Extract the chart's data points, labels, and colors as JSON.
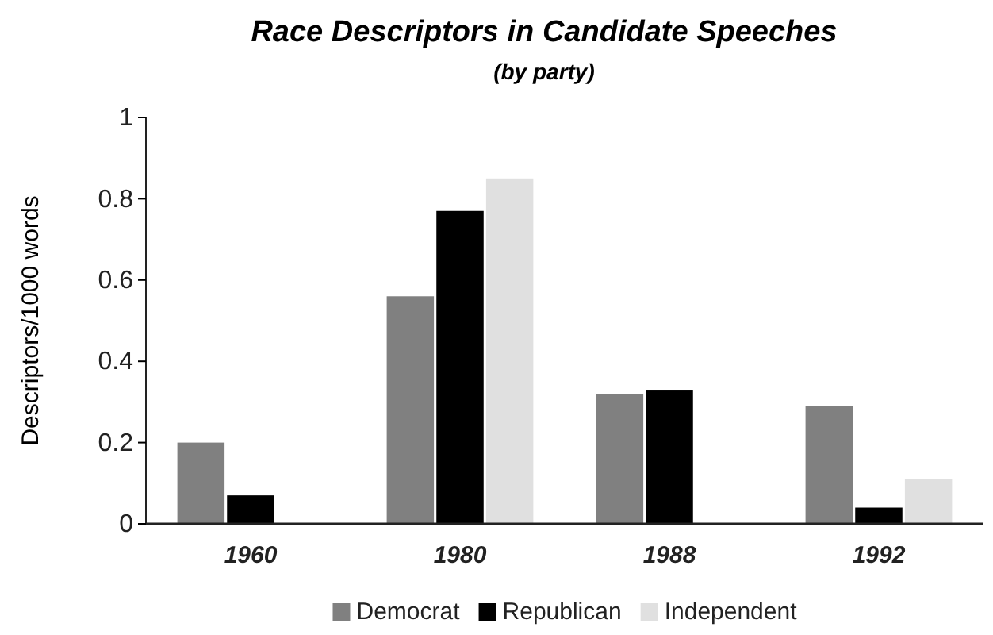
{
  "chart_data": {
    "type": "bar",
    "title": "Race Descriptors in Candidate Speeches",
    "subtitle": "(by party)",
    "ylabel": "Descriptors/1000 words",
    "categories": [
      "1960",
      "1980",
      "1988",
      "1992"
    ],
    "series": [
      {
        "name": "Democrat",
        "color": "#808080",
        "values": [
          0.2,
          0.56,
          0.32,
          0.29
        ]
      },
      {
        "name": "Republican",
        "color": "#000000",
        "values": [
          0.07,
          0.77,
          0.33,
          0.04
        ]
      },
      {
        "name": "Independent",
        "color": "#e0e0e0",
        "values": [
          null,
          0.85,
          null,
          0.11
        ]
      }
    ],
    "ylim": [
      0,
      1
    ],
    "yticks": [
      0,
      0.2,
      0.4,
      0.6,
      0.8,
      1
    ],
    "grid": false,
    "legend": "bottom"
  }
}
